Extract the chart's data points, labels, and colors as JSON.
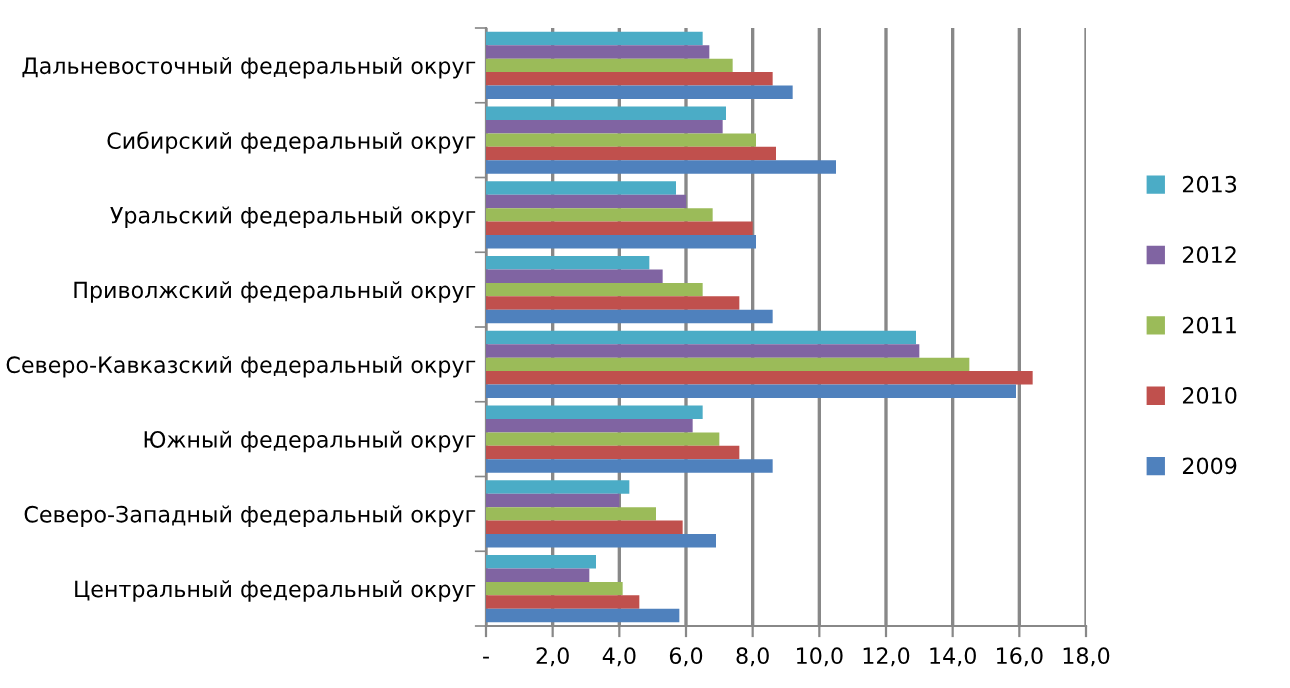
{
  "chart_data": {
    "type": "bar",
    "orientation": "horizontal",
    "categories": [
      "Дальневосточный федеральный округ",
      "Сибирский федеральный округ",
      "Уральский федеральный округ",
      "Приволжский федеральный округ",
      "Северо-Кавказский федеральный округ",
      "Южный федеральный округ",
      "Северо-Западный федеральный округ",
      "Центральный федеральный округ"
    ],
    "series": [
      {
        "name": "2013",
        "color": "#4bacc6",
        "values": [
          6.5,
          7.2,
          5.7,
          4.9,
          12.9,
          6.5,
          4.3,
          3.3
        ]
      },
      {
        "name": "2012",
        "color": "#8064a2",
        "values": [
          6.7,
          7.1,
          6.0,
          5.3,
          13.0,
          6.2,
          4.0,
          3.1
        ]
      },
      {
        "name": "2011",
        "color": "#9bbb59",
        "values": [
          7.4,
          8.1,
          6.8,
          6.5,
          14.5,
          7.0,
          5.1,
          4.1
        ]
      },
      {
        "name": "2010",
        "color": "#c0504d",
        "values": [
          8.6,
          8.7,
          8.0,
          7.6,
          16.4,
          7.6,
          5.9,
          4.6
        ]
      },
      {
        "name": "2009",
        "color": "#4f81bd",
        "values": [
          9.2,
          10.5,
          8.1,
          8.6,
          15.9,
          8.6,
          6.9,
          5.8
        ]
      }
    ],
    "xlim": [
      0,
      18
    ],
    "xticks": [
      {
        "value": 0,
        "label": "-"
      },
      {
        "value": 2,
        "label": "2,0"
      },
      {
        "value": 4,
        "label": "4,0"
      },
      {
        "value": 6,
        "label": "6,0"
      },
      {
        "value": 8,
        "label": "8,0"
      },
      {
        "value": 10,
        "label": "10,0"
      },
      {
        "value": 12,
        "label": "12,0"
      },
      {
        "value": 14,
        "label": "14,0"
      },
      {
        "value": 16,
        "label": "16,0"
      },
      {
        "value": 18,
        "label": "18,0"
      }
    ],
    "grid": "x",
    "legend": "right"
  }
}
